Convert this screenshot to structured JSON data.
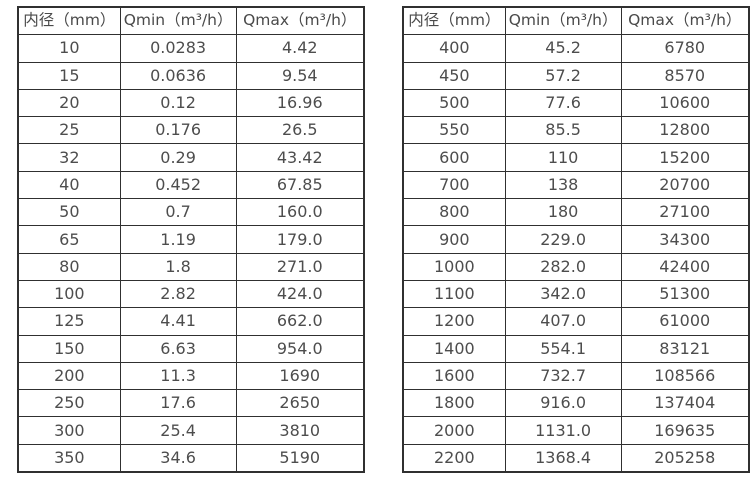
{
  "colors": {
    "border": "#303030",
    "text": "#4d4d4d",
    "background": "#ffffff"
  },
  "tables": [
    {
      "name": "flow-rate-table-small-diameters",
      "headers": [
        "内径（mm）",
        "Qmin（m³/h）",
        "Qmax（m³/h）"
      ],
      "rows": [
        [
          "10",
          "0.0283",
          "4.42"
        ],
        [
          "15",
          "0.0636",
          "9.54"
        ],
        [
          "20",
          "0.12",
          "16.96"
        ],
        [
          "25",
          "0.176",
          "26.5"
        ],
        [
          "32",
          "0.29",
          "43.42"
        ],
        [
          "40",
          "0.452",
          "67.85"
        ],
        [
          "50",
          "0.7",
          "160.0"
        ],
        [
          "65",
          "1.19",
          "179.0"
        ],
        [
          "80",
          "1.8",
          "271.0"
        ],
        [
          "100",
          "2.82",
          "424.0"
        ],
        [
          "125",
          "4.41",
          "662.0"
        ],
        [
          "150",
          "6.63",
          "954.0"
        ],
        [
          "200",
          "11.3",
          "1690"
        ],
        [
          "250",
          "17.6",
          "2650"
        ],
        [
          "300",
          "25.4",
          "3810"
        ],
        [
          "350",
          "34.6",
          "5190"
        ]
      ]
    },
    {
      "name": "flow-rate-table-large-diameters",
      "headers": [
        "内径（mm）",
        "Qmin（m³/h）",
        "Qmax（m³/h）"
      ],
      "rows": [
        [
          "400",
          "45.2",
          "6780"
        ],
        [
          "450",
          "57.2",
          "8570"
        ],
        [
          "500",
          "77.6",
          "10600"
        ],
        [
          "550",
          "85.5",
          "12800"
        ],
        [
          "600",
          "110",
          "15200"
        ],
        [
          "700",
          "138",
          "20700"
        ],
        [
          "800",
          "180",
          "27100"
        ],
        [
          "900",
          "229.0",
          "34300"
        ],
        [
          "1000",
          "282.0",
          "42400"
        ],
        [
          "1100",
          "342.0",
          "51300"
        ],
        [
          "1200",
          "407.0",
          "61000"
        ],
        [
          "1400",
          "554.1",
          "83121"
        ],
        [
          "1600",
          "732.7",
          "108566"
        ],
        [
          "1800",
          "916.0",
          "137404"
        ],
        [
          "2000",
          "1131.0",
          "169635"
        ],
        [
          "2200",
          "1368.4",
          "205258"
        ]
      ]
    }
  ]
}
